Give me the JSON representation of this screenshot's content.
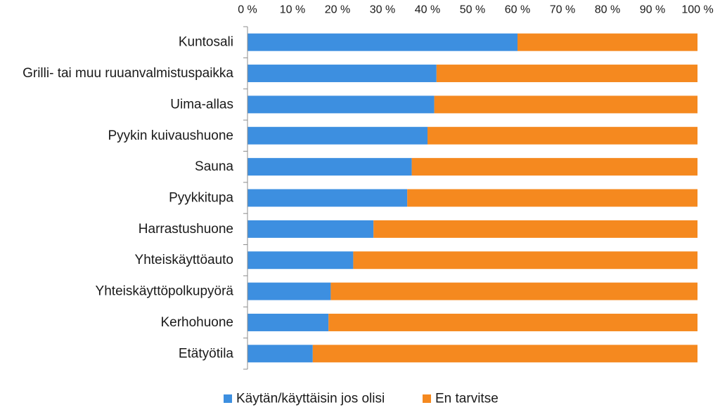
{
  "chart_data": {
    "type": "bar",
    "orientation": "horizontal",
    "stacked": "percent",
    "categories": [
      "Kuntosali",
      "Grilli- tai muu ruuanvalmistuspaikka",
      "Uima-allas",
      "Pyykin kuivaushuone",
      "Sauna",
      "Pyykkitupa",
      "Harrastushuone",
      "Yhteiskäyttöauto",
      "Yhteiskäyttöpolkupyörä",
      "Kerhohuone",
      "Etätyötila"
    ],
    "series": [
      {
        "name": "Käytän/käyttäisin jos olisi",
        "color": "#3d8fe0",
        "values": [
          60,
          42,
          41.5,
          40,
          36.5,
          35.5,
          28,
          23.5,
          18.5,
          18,
          14.5
        ]
      },
      {
        "name": "En tarvitse",
        "color": "#f5891f",
        "values": [
          40,
          58,
          58.5,
          60,
          63.5,
          64.5,
          72,
          76.5,
          81.5,
          82,
          85.5
        ]
      }
    ],
    "x_ticks": [
      "0 %",
      "10 %",
      "20 %",
      "30 %",
      "40 %",
      "50 %",
      "60 %",
      "70 %",
      "80 %",
      "90 %",
      "100 %"
    ],
    "xlim": [
      0,
      100
    ],
    "x_axis_position": "top",
    "grid": false,
    "legend_position": "bottom"
  }
}
